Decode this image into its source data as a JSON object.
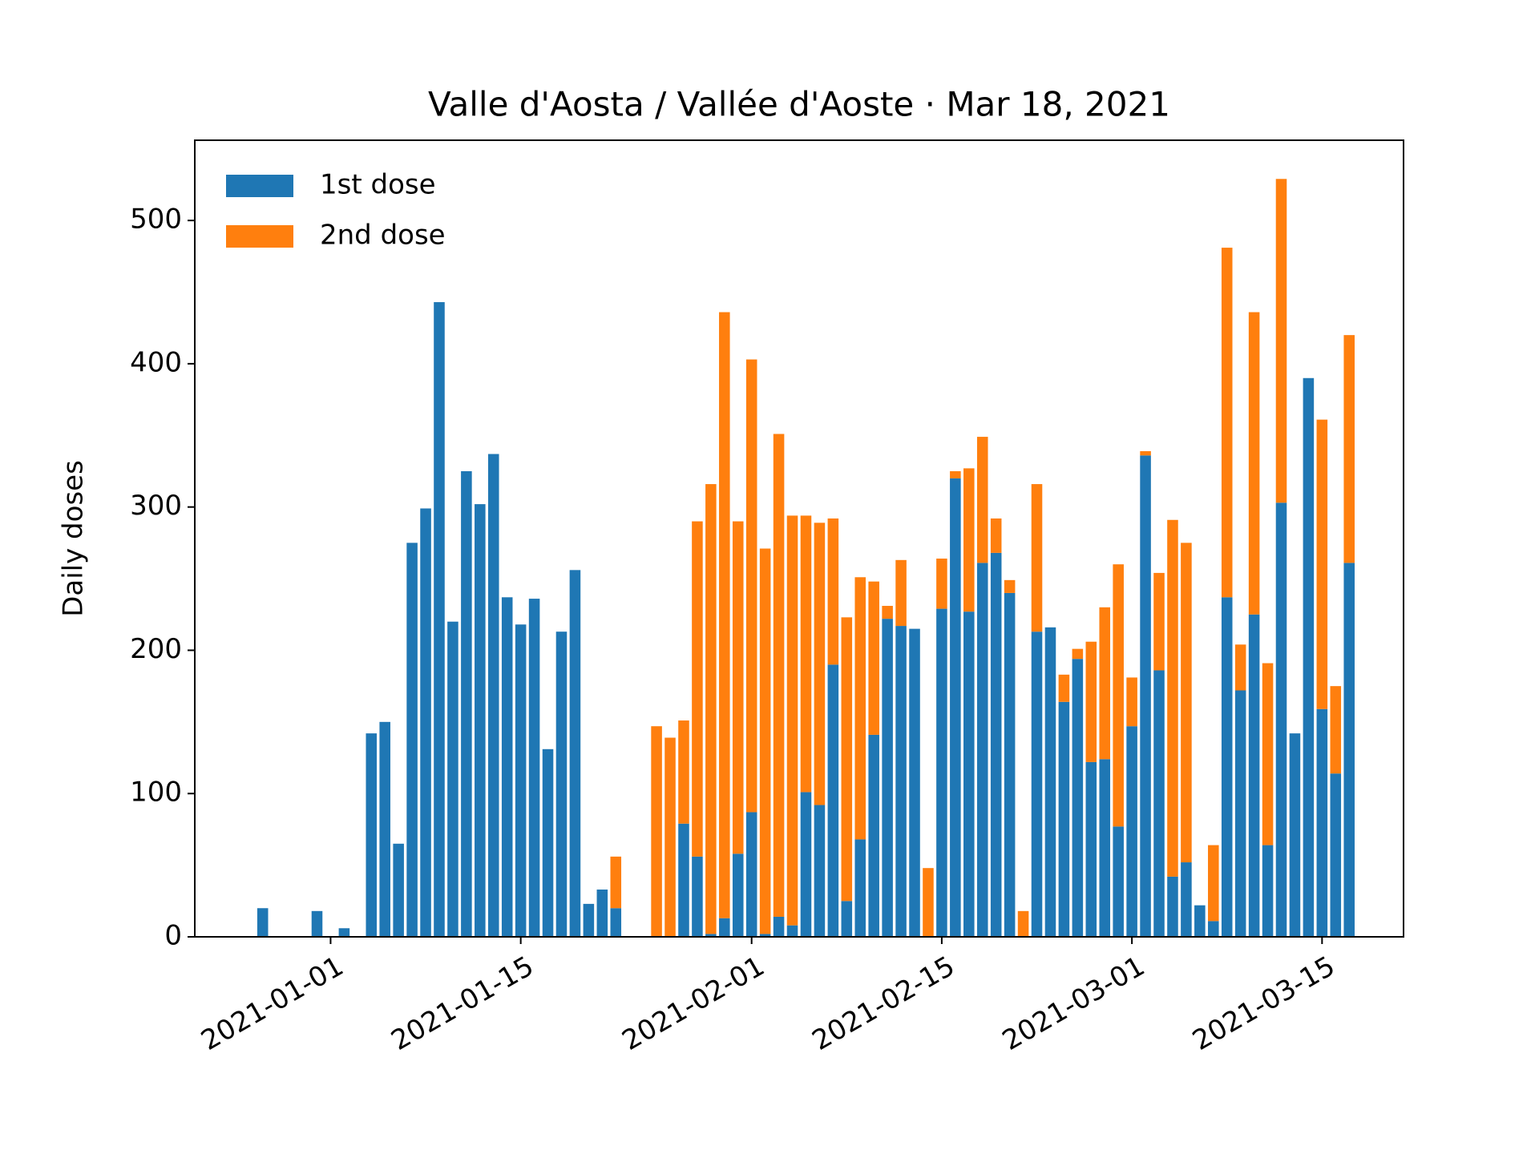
{
  "chart_data": {
    "type": "bar",
    "stacked": true,
    "title": "Valle d'Aosta / Vallée d'Aoste · Mar 18, 2021",
    "ylabel": "Daily doses",
    "x": [
      "2020-12-27",
      "2020-12-28",
      "2020-12-29",
      "2020-12-30",
      "2020-12-31",
      "2021-01-01",
      "2021-01-02",
      "2021-01-03",
      "2021-01-04",
      "2021-01-05",
      "2021-01-06",
      "2021-01-07",
      "2021-01-08",
      "2021-01-09",
      "2021-01-10",
      "2021-01-11",
      "2021-01-12",
      "2021-01-13",
      "2021-01-14",
      "2021-01-15",
      "2021-01-16",
      "2021-01-17",
      "2021-01-18",
      "2021-01-19",
      "2021-01-20",
      "2021-01-21",
      "2021-01-22",
      "2021-01-23",
      "2021-01-24",
      "2021-01-25",
      "2021-01-26",
      "2021-01-27",
      "2021-01-28",
      "2021-01-29",
      "2021-01-30",
      "2021-01-31",
      "2021-02-01",
      "2021-02-02",
      "2021-02-03",
      "2021-02-04",
      "2021-02-05",
      "2021-02-06",
      "2021-02-07",
      "2021-02-08",
      "2021-02-09",
      "2021-02-10",
      "2021-02-11",
      "2021-02-12",
      "2021-02-13",
      "2021-02-14",
      "2021-02-15",
      "2021-02-16",
      "2021-02-17",
      "2021-02-18",
      "2021-02-19",
      "2021-02-20",
      "2021-02-21",
      "2021-02-22",
      "2021-02-23",
      "2021-02-24",
      "2021-02-25",
      "2021-02-26",
      "2021-02-27",
      "2021-02-28",
      "2021-03-01",
      "2021-03-02",
      "2021-03-03",
      "2021-03-04",
      "2021-03-05",
      "2021-03-06",
      "2021-03-07",
      "2021-03-08",
      "2021-03-09",
      "2021-03-10",
      "2021-03-11",
      "2021-03-12",
      "2021-03-13",
      "2021-03-14",
      "2021-03-15",
      "2021-03-16",
      "2021-03-17"
    ],
    "series": [
      {
        "name": "1st dose",
        "color": "#1f77b4",
        "values": [
          20,
          0,
          0,
          0,
          18,
          0,
          6,
          0,
          142,
          150,
          65,
          275,
          299,
          443,
          220,
          325,
          302,
          337,
          237,
          218,
          236,
          131,
          213,
          256,
          23,
          33,
          20,
          0,
          0,
          0,
          0,
          79,
          56,
          2,
          13,
          58,
          87,
          2,
          14,
          8,
          101,
          92,
          190,
          25,
          68,
          141,
          222,
          217,
          215,
          0,
          229,
          320,
          227,
          261,
          268,
          240,
          0,
          213,
          216,
          164,
          194,
          122,
          124,
          77,
          147,
          336,
          186,
          42,
          52,
          22,
          11,
          237,
          172,
          225,
          64,
          303,
          142,
          390,
          159,
          114,
          261
        ]
      },
      {
        "name": "2nd dose",
        "color": "#ff7f0e",
        "values": [
          0,
          0,
          0,
          0,
          0,
          0,
          0,
          0,
          0,
          0,
          0,
          0,
          0,
          0,
          0,
          0,
          0,
          0,
          0,
          0,
          0,
          0,
          0,
          0,
          0,
          0,
          36,
          0,
          0,
          147,
          139,
          72,
          234,
          314,
          423,
          232,
          316,
          269,
          337,
          286,
          193,
          197,
          102,
          198,
          183,
          107,
          9,
          46,
          0,
          48,
          35,
          5,
          100,
          88,
          24,
          9,
          18,
          103,
          0,
          19,
          7,
          84,
          106,
          183,
          34,
          3,
          68,
          249,
          223,
          0,
          53,
          244,
          32,
          211,
          127,
          226,
          0,
          0,
          202,
          61,
          159
        ]
      }
    ],
    "xlim": [
      "2020-12-22",
      "2021-03-21"
    ],
    "xticks": [
      "2021-01-01",
      "2021-01-15",
      "2021-02-01",
      "2021-02-15",
      "2021-03-01",
      "2021-03-15"
    ],
    "ylim": [
      0,
      556
    ],
    "yticks": [
      0,
      100,
      200,
      300,
      400,
      500
    ],
    "legend": "upper left"
  }
}
